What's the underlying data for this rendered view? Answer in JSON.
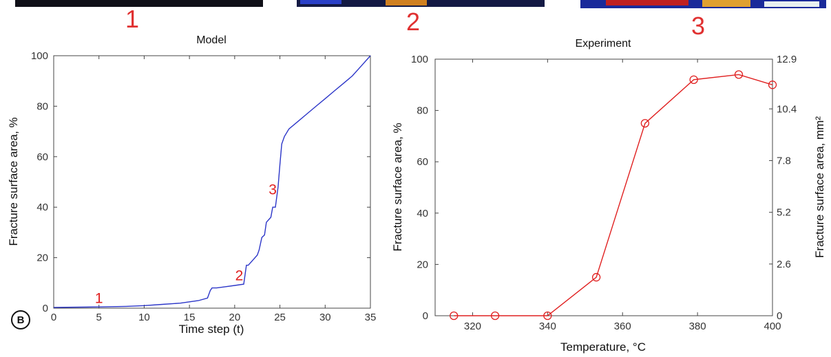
{
  "top_labels": [
    "1",
    "2",
    "3"
  ],
  "panel_label": "B",
  "colors": {
    "model_line": "#2b35c8",
    "experiment_line": "#e02020",
    "annotation": "#e02020",
    "axis": "#444444"
  },
  "chart_data": [
    {
      "type": "line",
      "title": "Model",
      "xlabel": "Time step (t)",
      "ylabel": "Fracture surface area, %",
      "xlim": [
        0,
        35
      ],
      "ylim": [
        0,
        100
      ],
      "xticks": [
        0,
        5,
        10,
        15,
        20,
        25,
        30,
        35
      ],
      "yticks": [
        0,
        20,
        40,
        60,
        80,
        100
      ],
      "x": [
        0,
        5,
        8,
        10,
        12,
        14,
        15,
        16,
        17,
        17.3,
        17.5,
        18,
        19,
        20,
        21,
        21.3,
        21.5,
        22,
        22.5,
        22.7,
        23,
        23.3,
        23.5,
        24,
        24.2,
        24.5,
        24.8,
        25,
        25.2,
        25.5,
        26,
        27,
        28,
        29,
        30,
        31,
        32,
        33,
        34,
        35
      ],
      "y": [
        0.3,
        0.5,
        0.7,
        1,
        1.5,
        2,
        2.5,
        3,
        4,
        7,
        8,
        8,
        8.5,
        9,
        9.5,
        17,
        17,
        19,
        21,
        23,
        28,
        29,
        34,
        36,
        40,
        40,
        48,
        57,
        65,
        68,
        71,
        74,
        77,
        80,
        83,
        86,
        89,
        92,
        96,
        100
      ],
      "annotations": [
        {
          "label": "1",
          "x": 5,
          "y": 1
        },
        {
          "label": "2",
          "x": 20.5,
          "y": 10
        },
        {
          "label": "3",
          "x": 24.2,
          "y": 44
        }
      ]
    },
    {
      "type": "line",
      "title": "Experiment",
      "xlabel": "Temperature, °C",
      "ylabel": "Fracture surface area, %",
      "y2label": "Fracture surface area, mm²",
      "xlim": [
        310,
        400
      ],
      "ylim": [
        0,
        100
      ],
      "xticks": [
        320,
        340,
        360,
        380,
        400
      ],
      "yticks": [
        0,
        20,
        40,
        60,
        80,
        100
      ],
      "y2ticks": [
        0,
        2.6,
        5.2,
        7.8,
        10.4,
        12.9
      ],
      "x": [
        315,
        326,
        340,
        353,
        366,
        379,
        391,
        400
      ],
      "y": [
        0,
        0,
        0,
        15,
        75,
        92,
        94,
        90
      ],
      "markers": "circle"
    }
  ]
}
